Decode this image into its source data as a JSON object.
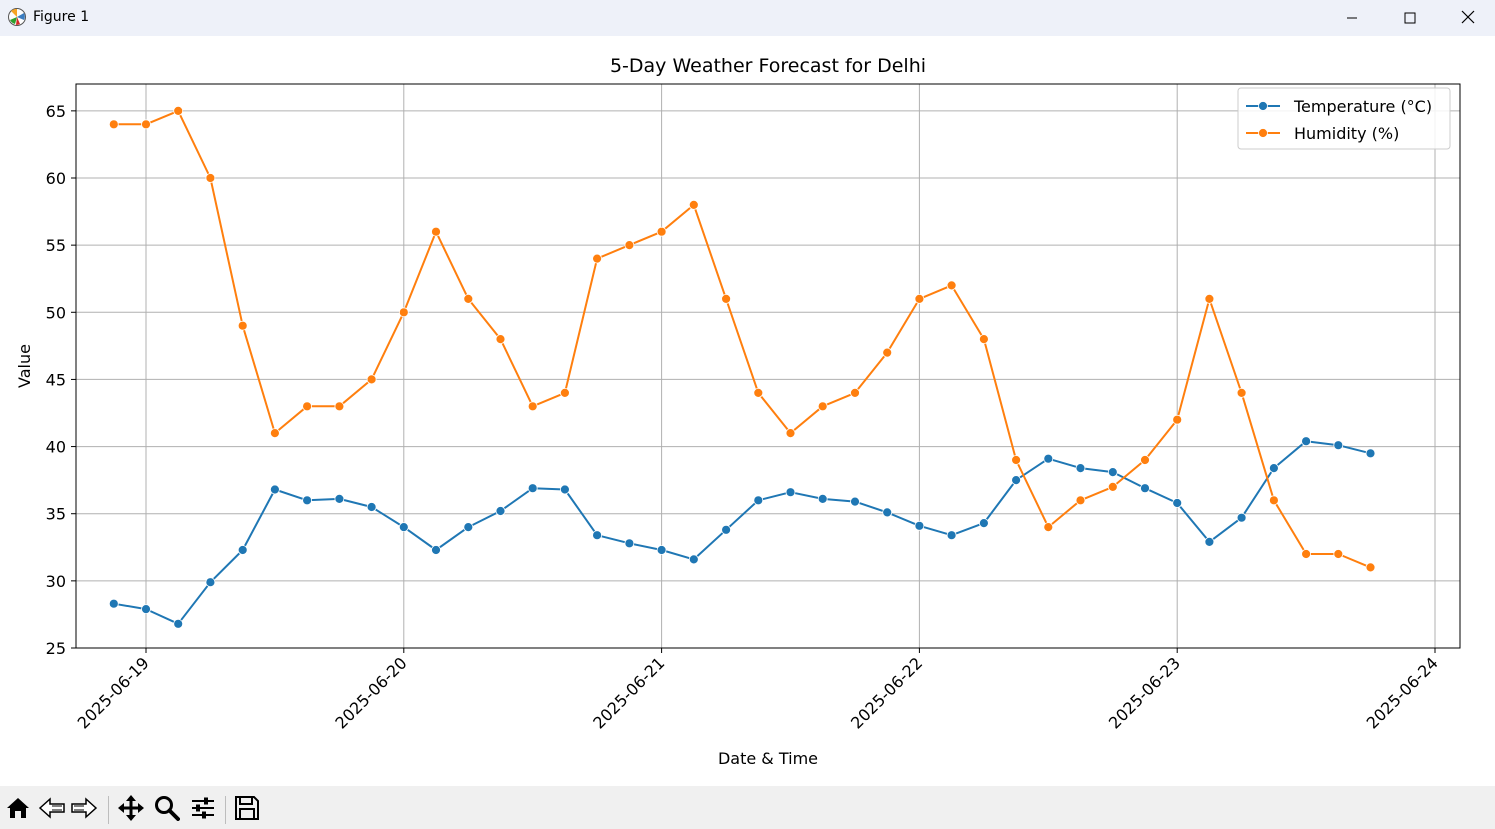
{
  "window": {
    "title": "Figure 1",
    "controls": [
      "minimize-icon",
      "maximize-icon",
      "close-icon"
    ]
  },
  "toolbar": {
    "buttons": [
      "home-icon",
      "back-icon",
      "forward-icon",
      "pan-icon",
      "zoom-icon",
      "configure-subplots-icon",
      "save-icon"
    ]
  },
  "chart_data": {
    "type": "line",
    "title": "5-Day Weather Forecast for Delhi",
    "xlabel": "Date & Time",
    "ylabel": "Value",
    "ylim": [
      25,
      67
    ],
    "yticks": [
      25,
      30,
      35,
      40,
      45,
      50,
      55,
      60,
      65
    ],
    "xticks": [
      "2025-06-19",
      "2025-06-20",
      "2025-06-21",
      "2025-06-22",
      "2025-06-23",
      "2025-06-24"
    ],
    "grid": true,
    "legend_position": "upper right",
    "x": [
      "2025-06-18 21:00",
      "2025-06-19 00:00",
      "2025-06-19 03:00",
      "2025-06-19 06:00",
      "2025-06-19 09:00",
      "2025-06-19 12:00",
      "2025-06-19 15:00",
      "2025-06-19 18:00",
      "2025-06-19 21:00",
      "2025-06-20 00:00",
      "2025-06-20 03:00",
      "2025-06-20 06:00",
      "2025-06-20 09:00",
      "2025-06-20 12:00",
      "2025-06-20 15:00",
      "2025-06-20 18:00",
      "2025-06-20 21:00",
      "2025-06-21 00:00",
      "2025-06-21 03:00",
      "2025-06-21 06:00",
      "2025-06-21 09:00",
      "2025-06-21 12:00",
      "2025-06-21 15:00",
      "2025-06-21 18:00",
      "2025-06-21 21:00",
      "2025-06-22 00:00",
      "2025-06-22 03:00",
      "2025-06-22 06:00",
      "2025-06-22 09:00",
      "2025-06-22 12:00",
      "2025-06-22 15:00",
      "2025-06-22 18:00",
      "2025-06-22 21:00",
      "2025-06-23 00:00",
      "2025-06-23 03:00",
      "2025-06-23 06:00",
      "2025-06-23 09:00",
      "2025-06-23 12:00",
      "2025-06-23 15:00",
      "2025-06-23 18:00"
    ],
    "series": [
      {
        "name": "Temperature (°C)",
        "color": "#1f77b4",
        "values": [
          28.3,
          27.9,
          26.8,
          29.9,
          32.3,
          36.8,
          36.0,
          36.1,
          35.5,
          34.0,
          32.3,
          34.0,
          35.2,
          36.9,
          36.8,
          33.4,
          32.8,
          32.3,
          31.6,
          33.8,
          36.0,
          36.6,
          36.1,
          35.9,
          35.1,
          34.1,
          33.4,
          34.3,
          37.5,
          39.1,
          38.4,
          38.1,
          36.9,
          35.8,
          32.9,
          34.7,
          38.4,
          40.4,
          40.1,
          39.5
        ]
      },
      {
        "name": "Humidity (%)",
        "color": "#ff7f0e",
        "values": [
          64,
          64,
          65,
          60,
          49,
          41,
          43,
          43,
          45,
          50,
          56,
          51,
          48,
          43,
          44,
          54,
          55,
          56,
          58,
          51,
          44,
          41,
          43,
          44,
          47,
          51,
          52,
          48,
          39,
          34,
          36,
          37,
          39,
          42,
          51,
          44,
          36,
          32,
          32,
          31
        ]
      }
    ]
  }
}
